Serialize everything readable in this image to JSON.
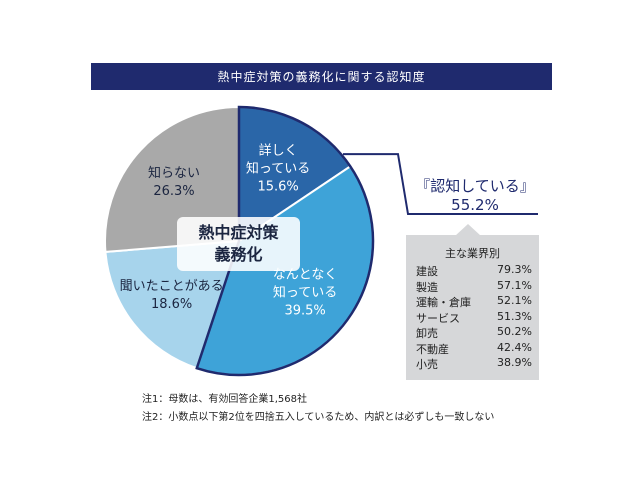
{
  "title": "熱中症対策の義務化に関する認知度",
  "chart_data": {
    "type": "pie",
    "center_label": [
      "熱中症対策",
      "義務化"
    ],
    "slices": [
      {
        "label": [
          "詳しく",
          "知っている"
        ],
        "value": 15.6,
        "value_text": "15.6%",
        "color": "#2a66a8",
        "text_color": "#ffffff"
      },
      {
        "label": [
          "なんとなく",
          "知っている"
        ],
        "value": 39.5,
        "value_text": "39.5%",
        "color": "#3ea3d8",
        "text_color": "#ffffff"
      },
      {
        "label": [
          "聞いたことがある"
        ],
        "value": 18.6,
        "value_text": "18.6%",
        "color": "#a7d4ec",
        "text_color": "#1b2540"
      },
      {
        "label": [
          "知らない"
        ],
        "value": 26.3,
        "value_text": "26.3%",
        "color": "#a9a9a9",
        "text_color": "#1b2540"
      }
    ],
    "highlight": {
      "label": "『認知している』",
      "value_text": "55.2%",
      "color": "#1f2a6e"
    },
    "industries": {
      "title": "主な業界別",
      "rows": [
        {
          "name": "建設",
          "value": 79.3,
          "value_text": "79.3%"
        },
        {
          "name": "製造",
          "value": 57.1,
          "value_text": "57.1%"
        },
        {
          "name": "運輸・倉庫",
          "value": 52.1,
          "value_text": "52.1%"
        },
        {
          "name": "サービス",
          "value": 51.3,
          "value_text": "51.3%"
        },
        {
          "name": "卸売",
          "value": 50.2,
          "value_text": "50.2%"
        },
        {
          "name": "不動産",
          "value": 42.4,
          "value_text": "42.4%"
        },
        {
          "name": "小売",
          "value": 38.9,
          "value_text": "38.9%"
        }
      ]
    }
  },
  "notes": [
    "注1：母数は、有効回答企業1,568社",
    "注2：小数点以下第2位を四捨五入しているため、内訳とは必ずしも一致しない"
  ]
}
